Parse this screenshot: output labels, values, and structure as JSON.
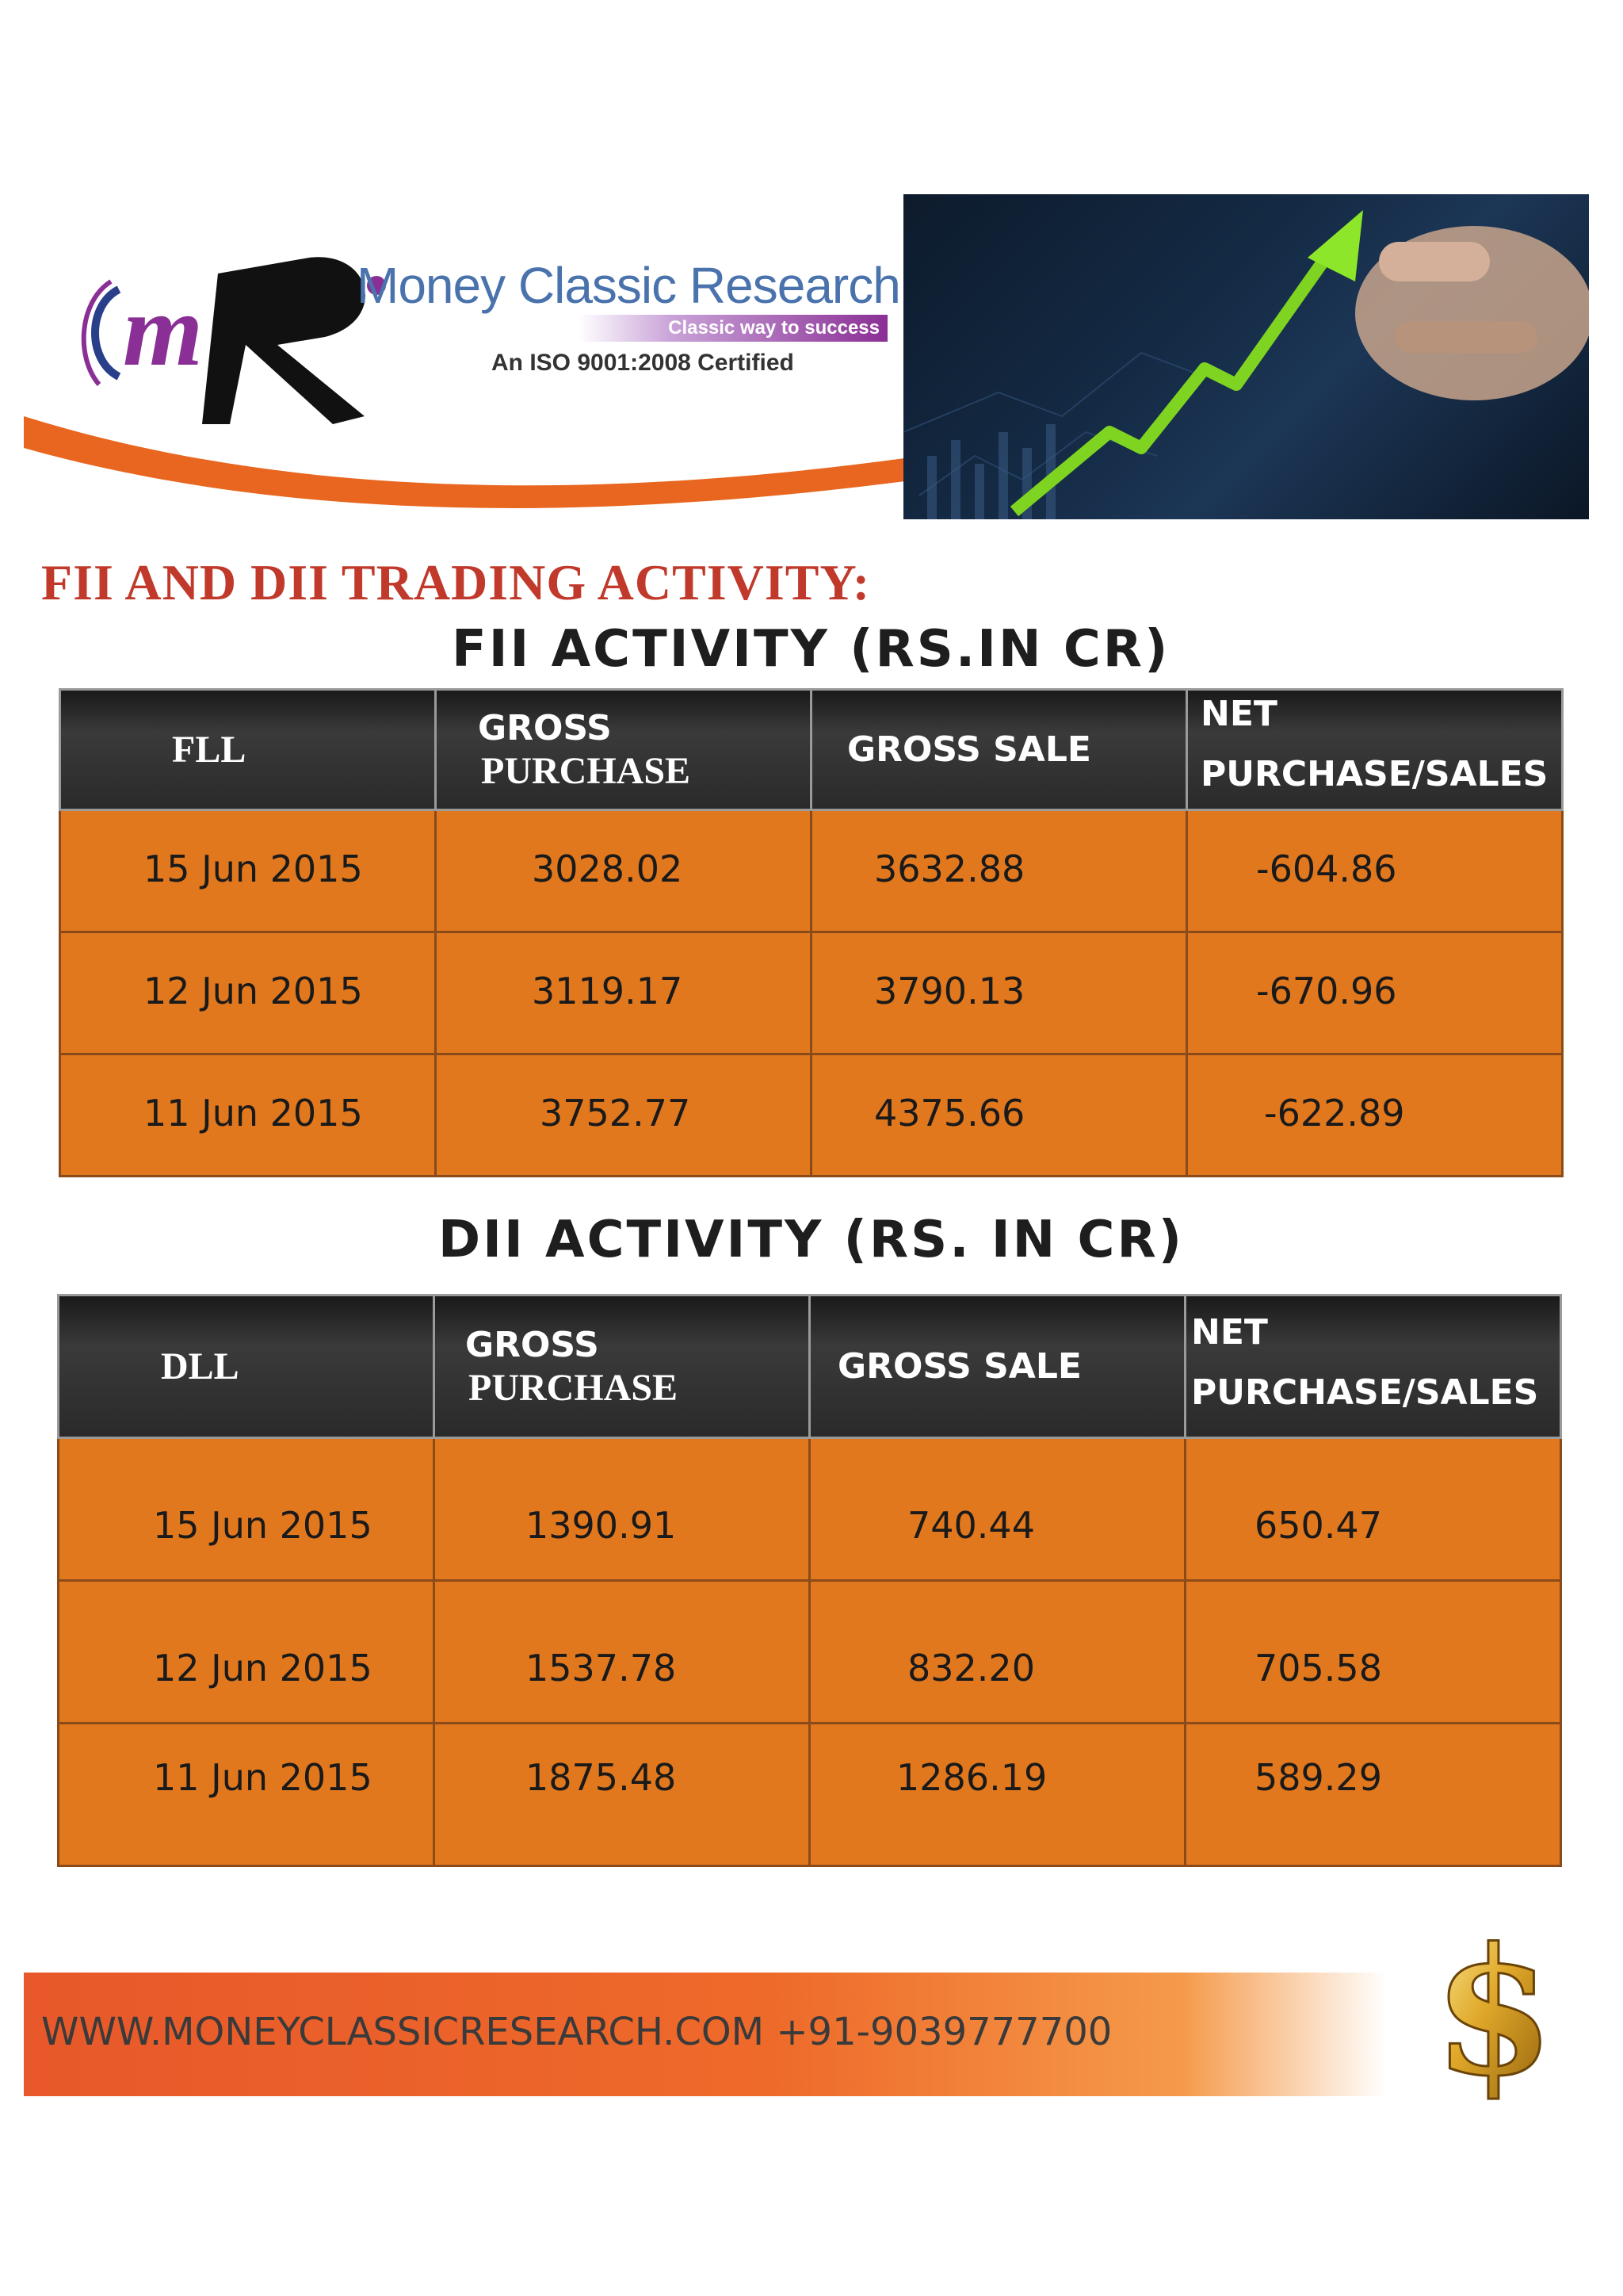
{
  "brand": {
    "name": "Money Classic Research",
    "tagline": "Classic way to success",
    "certification": "An ISO 9001:2008 Certified"
  },
  "title": "FII AND DII TRADING ACTIVITY:",
  "fii": {
    "heading": "FII ACTIVITY (RS.IN CR)",
    "columns": [
      "FLL",
      "GROSS PURCHASE",
      "GROSS SALE",
      "NET PURCHASE/SALES"
    ],
    "column_lines": [
      [
        "FLL"
      ],
      [
        "GROSS",
        "PURCHASE"
      ],
      [
        "GROSS SALE"
      ],
      [
        "NET",
        "PURCHASE/SALES"
      ]
    ],
    "rows": [
      [
        "15 Jun 2015",
        "3028.02",
        "3632.88",
        "-604.86"
      ],
      [
        "12 Jun 2015",
        "3119.17",
        "3790.13",
        "-670.96"
      ],
      [
        "11 Jun 2015",
        "3752.77",
        "4375.66",
        "-622.89"
      ]
    ]
  },
  "dii": {
    "heading": "DII ACTIVITY (RS. IN CR)",
    "columns": [
      "DLL",
      "GROSS PURCHASE",
      "GROSS SALE",
      "NET PURCHASE/SALES"
    ],
    "column_lines": [
      [
        "DLL"
      ],
      [
        "GROSS",
        "PURCHASE"
      ],
      [
        "GROSS SALE"
      ],
      [
        "NET",
        "PURCHASE/SALES"
      ]
    ],
    "rows": [
      [
        "15 Jun 2015",
        "1390.91",
        "740.44",
        "650.47"
      ],
      [
        "12 Jun 2015",
        "1537.78",
        "832.20",
        "705.58"
      ],
      [
        "11 Jun 2015",
        "1875.48",
        "1286.19",
        "589.29"
      ]
    ]
  },
  "footer": {
    "contact": "WWW.MONEYCLASSICRESEARCH.COM +91-9039777700"
  },
  "colors": {
    "accent_orange": "#e2781e",
    "header_dark": "#2a2a2a",
    "title_red": "#c0392b",
    "brand_blue": "#4a73ad",
    "brand_purple": "#8a2f95"
  },
  "icons": [
    "mr-logo-icon",
    "growth-arrow-icon",
    "dollar-icon"
  ]
}
